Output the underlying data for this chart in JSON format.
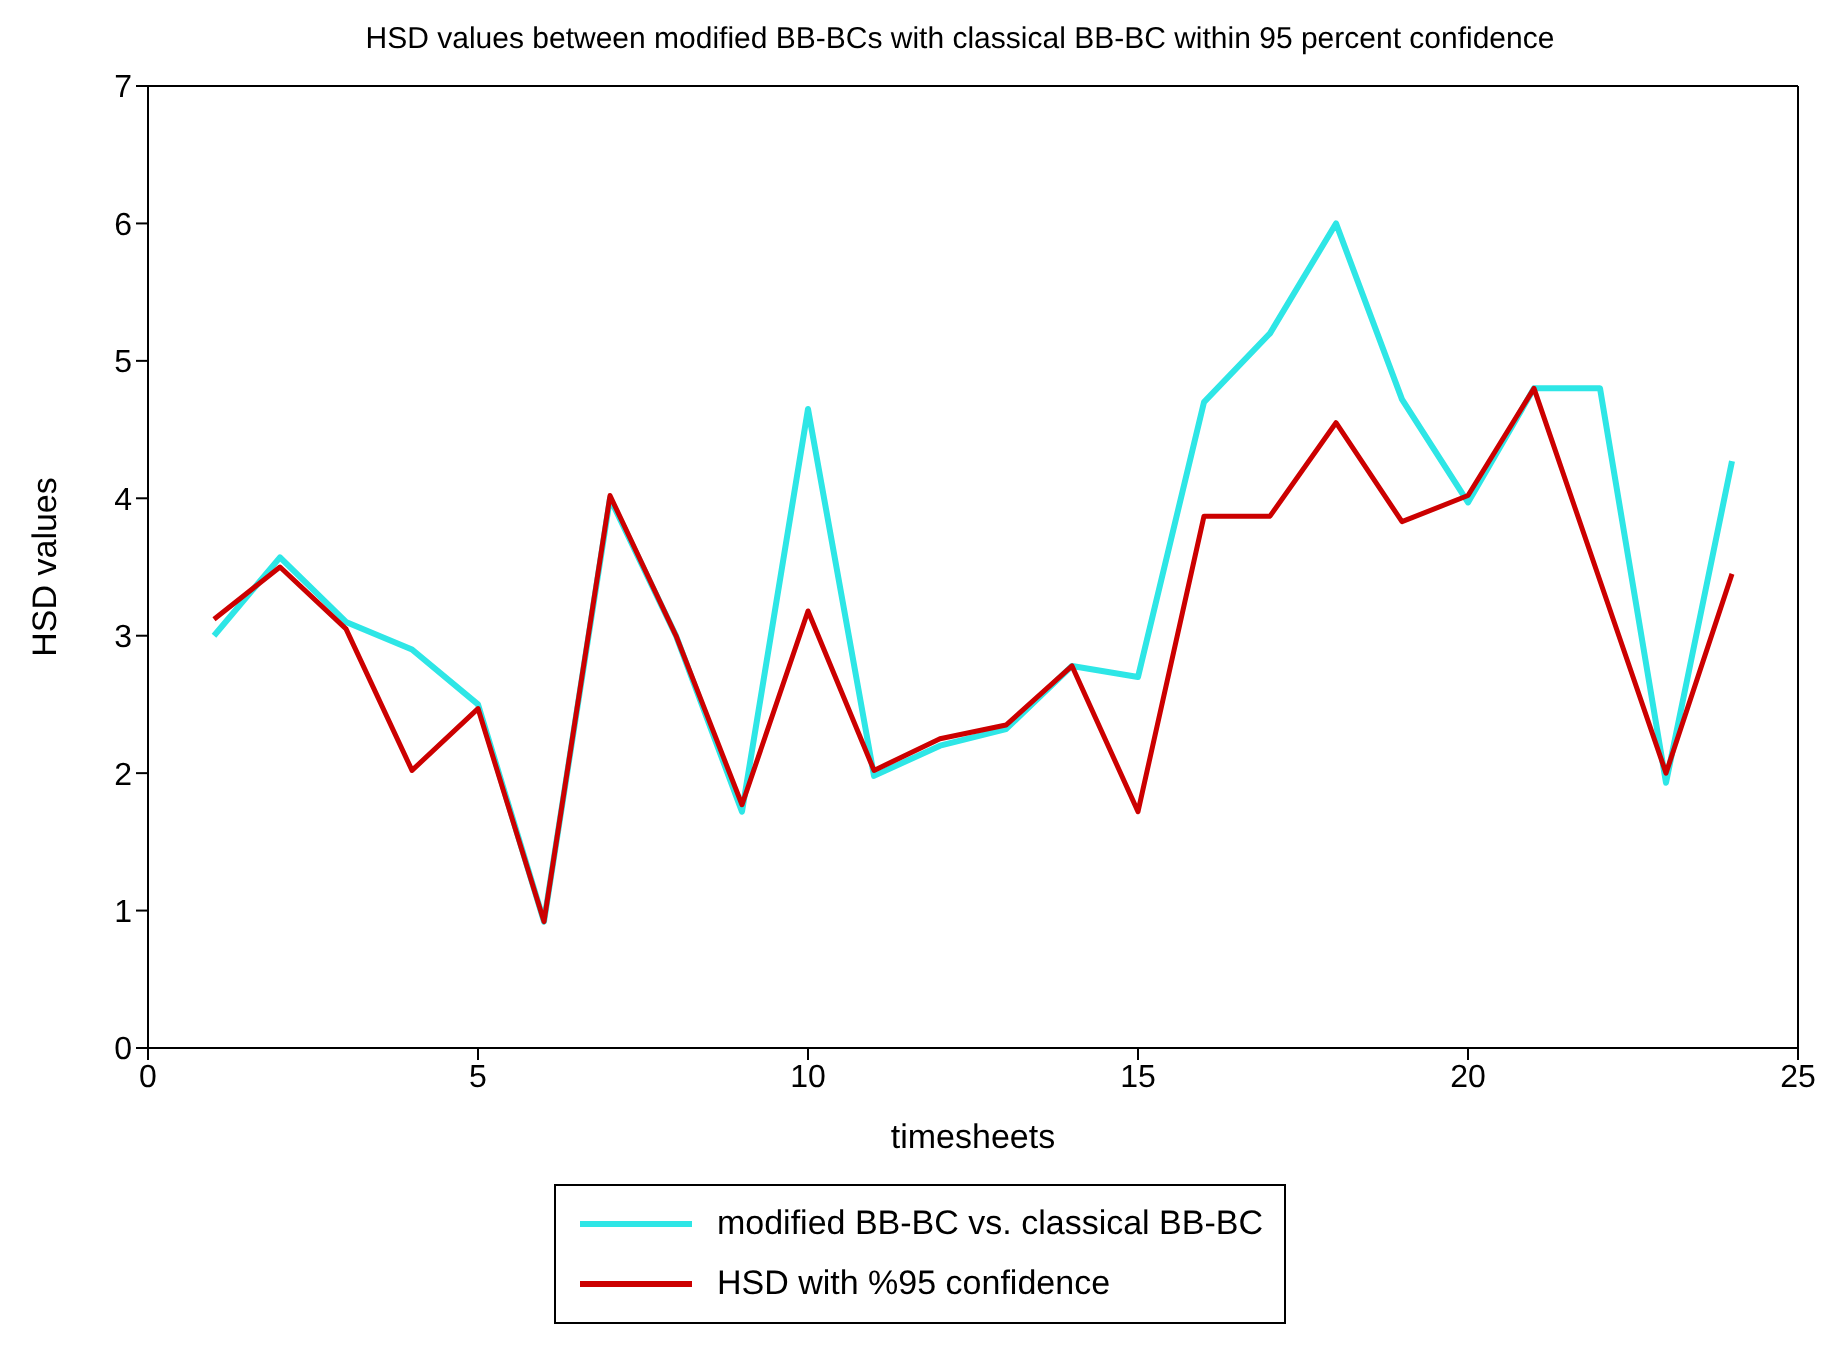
{
  "chart_data": {
    "type": "line",
    "title": "HSD values between modified BB-BCs with classical BB-BC within 95 percent confidence",
    "xlabel": "timesheets",
    "ylabel": "HSD values",
    "x": [
      1,
      2,
      3,
      4,
      5,
      6,
      7,
      8,
      9,
      10,
      11,
      12,
      13,
      14,
      15,
      16,
      17,
      18,
      19,
      20,
      21,
      22,
      23,
      24
    ],
    "series": [
      {
        "name": "modified BB-BC vs. classical BB-BC",
        "color": "#2ee6e6",
        "values": [
          3.0,
          3.57,
          3.1,
          2.9,
          2.5,
          0.92,
          4.0,
          3.0,
          1.72,
          4.65,
          1.98,
          2.2,
          2.32,
          2.78,
          2.7,
          4.7,
          5.2,
          6.0,
          4.72,
          3.97,
          4.8,
          4.8,
          1.93,
          4.27
        ]
      },
      {
        "name": "HSD with %95 confidence",
        "color": "#cc0000",
        "values": [
          3.12,
          3.5,
          3.05,
          2.02,
          2.47,
          0.92,
          4.02,
          3.0,
          1.77,
          3.18,
          2.02,
          2.25,
          2.35,
          2.78,
          1.72,
          3.87,
          3.87,
          4.55,
          3.83,
          4.02,
          4.8,
          3.4,
          2.0,
          3.45
        ]
      }
    ],
    "xlim": [
      0,
      25
    ],
    "xticks": [
      0,
      5,
      10,
      15,
      20,
      25
    ],
    "ylim": [
      0,
      7
    ],
    "yticks": [
      0,
      1,
      2,
      3,
      4,
      5,
      6,
      7
    ],
    "grid": false,
    "legend": "bottom",
    "marker": "none",
    "line_style": "solid"
  }
}
